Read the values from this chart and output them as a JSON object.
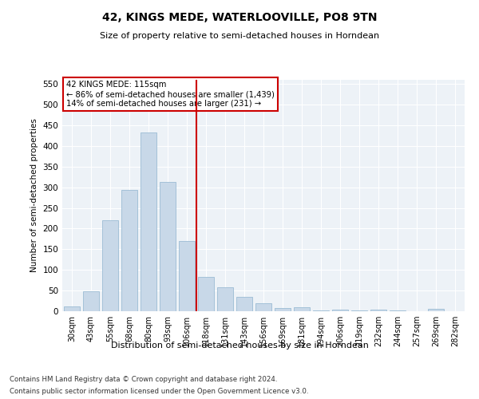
{
  "title": "42, KINGS MEDE, WATERLOOVILLE, PO8 9TN",
  "subtitle": "Size of property relative to semi-detached houses in Horndean",
  "xlabel": "Distribution of semi-detached houses by size in Horndean",
  "ylabel": "Number of semi-detached properties",
  "footer_line1": "Contains HM Land Registry data © Crown copyright and database right 2024.",
  "footer_line2": "Contains public sector information licensed under the Open Government Licence v3.0.",
  "annotation_title": "42 KINGS MEDE: 115sqm",
  "annotation_line1": "← 86% of semi-detached houses are smaller (1,439)",
  "annotation_line2": "14% of semi-detached houses are larger (231) →",
  "property_bin_index": 6,
  "bar_color": "#c8d8e8",
  "bar_edgecolor": "#9bbcd4",
  "vline_color": "#cc0000",
  "annotation_box_edgecolor": "#cc0000",
  "background_color": "#edf2f7",
  "categories": [
    "30sqm",
    "43sqm",
    "55sqm",
    "68sqm",
    "80sqm",
    "93sqm",
    "106sqm",
    "118sqm",
    "131sqm",
    "143sqm",
    "156sqm",
    "169sqm",
    "181sqm",
    "194sqm",
    "206sqm",
    "219sqm",
    "232sqm",
    "244sqm",
    "257sqm",
    "269sqm",
    "282sqm"
  ],
  "values": [
    12,
    48,
    220,
    293,
    432,
    312,
    170,
    83,
    57,
    35,
    20,
    8,
    10,
    2,
    4,
    1,
    4,
    1,
    0,
    5,
    0
  ],
  "ylim": [
    0,
    560
  ],
  "yticks": [
    0,
    50,
    100,
    150,
    200,
    250,
    300,
    350,
    400,
    450,
    500,
    550
  ]
}
